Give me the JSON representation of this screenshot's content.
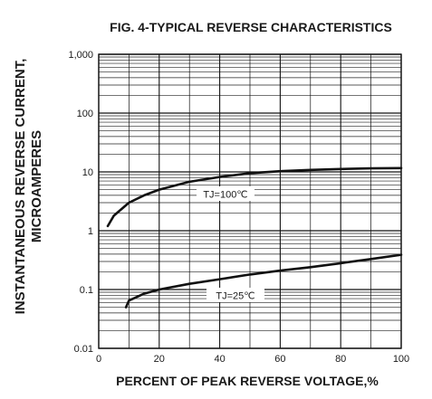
{
  "chart_data": {
    "type": "line",
    "title": "FIG. 4-TYPICAL REVERSE CHARACTERISTICS",
    "xlabel": "PERCENT OF PEAK REVERSE VOLTAGE,%",
    "ylabel": [
      "INSTANTANEOUS REVERSE CURRENT,",
      "MICROAMPERES"
    ],
    "xlim": [
      0,
      100
    ],
    "ylim": [
      0.01,
      1000
    ],
    "yscale": "log",
    "grid": true,
    "x_ticks": [
      "0",
      "20",
      "40",
      "60",
      "80",
      "100"
    ],
    "y_ticks": [
      "0.01",
      "0.1",
      "1",
      "10",
      "100",
      "1,000"
    ],
    "series": [
      {
        "name": "TJ=100℃",
        "label_position": "upper curve",
        "x": [
          3,
          5,
          10,
          15,
          20,
          30,
          40,
          50,
          60,
          70,
          80,
          90,
          100
        ],
        "y": [
          1.2,
          1.8,
          3.0,
          4.0,
          5.0,
          6.8,
          8.2,
          9.5,
          10.3,
          10.8,
          11.2,
          11.5,
          11.6
        ]
      },
      {
        "name": "TJ=25℃",
        "label_position": "lower curve",
        "x": [
          9,
          10,
          15,
          20,
          30,
          40,
          50,
          60,
          70,
          80,
          90,
          100
        ],
        "y": [
          0.05,
          0.065,
          0.085,
          0.1,
          0.125,
          0.15,
          0.18,
          0.21,
          0.24,
          0.28,
          0.33,
          0.39
        ]
      }
    ]
  }
}
